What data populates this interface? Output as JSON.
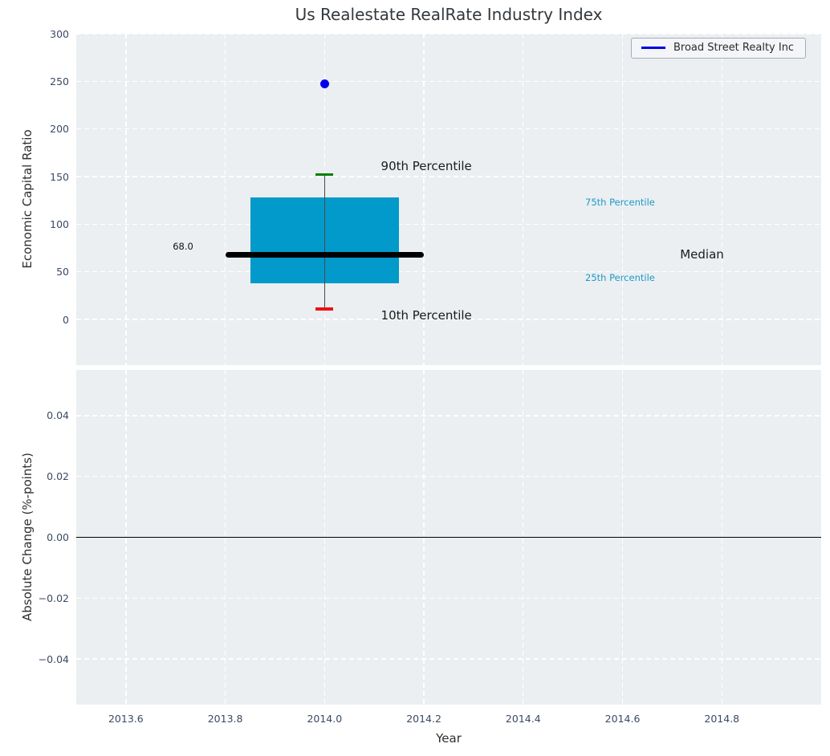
{
  "title": "Us Realestate RealRate Industry Index",
  "legend": {
    "label": "Broad Street Realty Inc",
    "line_color": "#0000e0"
  },
  "colors": {
    "panel_bg": "#ebeff1",
    "grid": "#ffffff",
    "tick_label": "#3b4a63",
    "title": "#33383d",
    "box_fill": "#019acb",
    "median": "#000000",
    "p90_cap": "#007f00",
    "p10_cap": "#ee1111",
    "point": "#0000ee",
    "whisker": "#4a4a4a",
    "cyan_label": "#1f99c7",
    "zero_line": "#000000",
    "legend_border": "#a6adb5",
    "legend_bg": "#f4f5f9"
  },
  "chart_data": [
    {
      "type": "boxplot",
      "title": "Us Realestate RealRate Industry Index",
      "ylabel": "Economic Capital Ratio",
      "xlim": [
        2013.5,
        2015.0
      ],
      "ylim": [
        -48,
        300
      ],
      "yticks": [
        0,
        50,
        100,
        150,
        200,
        250,
        300
      ],
      "ytick_labels": [
        "0",
        "50",
        "100",
        "150",
        "200",
        "250",
        "300"
      ],
      "xticks": [
        2013.6,
        2013.8,
        2014.0,
        2014.2,
        2014.4,
        2014.6,
        2014.8
      ],
      "grid": true,
      "legend_position": "upper right",
      "box": {
        "x": 2014.0,
        "box_left": 2013.85,
        "box_right": 2014.15,
        "q1": 38,
        "q3": 128,
        "median": 68,
        "median_label": "68.0",
        "median_line_left": 2013.8,
        "median_line_right": 2014.2,
        "p10": 11,
        "p90": 152
      },
      "point": {
        "name": "Broad Street Realty Inc",
        "x": 2014.0,
        "y": 247
      },
      "annotations": [
        {
          "text": "68.0",
          "x": 2013.715,
          "y": 77,
          "style": "black-sm"
        },
        {
          "text": "90th Percentile",
          "x": 2014.205,
          "y": 161,
          "style": "black-lg"
        },
        {
          "text": "10th Percentile",
          "x": 2014.205,
          "y": 4,
          "style": "black-lg"
        },
        {
          "text": "75th Percentile",
          "x": 2014.595,
          "y": 123,
          "style": "cyan-sm"
        },
        {
          "text": "25th Percentile",
          "x": 2014.595,
          "y": 44,
          "style": "cyan-sm"
        },
        {
          "text": "Median",
          "x": 2014.76,
          "y": 68,
          "style": "black-lg"
        }
      ]
    },
    {
      "type": "line",
      "ylabel": "Absolute Change (%-points)",
      "xlabel": "Year",
      "xlim": [
        2013.5,
        2015.0
      ],
      "ylim": [
        -0.055,
        0.055
      ],
      "yticks": [
        0.04,
        0.02,
        0.0,
        -0.02,
        -0.04
      ],
      "ytick_labels": [
        "0.04",
        "0.02",
        "0.00",
        "−0.02",
        "−0.04"
      ],
      "xticks": [
        2013.6,
        2013.8,
        2014.0,
        2014.2,
        2014.4,
        2014.6,
        2014.8
      ],
      "xtick_labels": [
        "2013.6",
        "2013.8",
        "2014.0",
        "2014.2",
        "2014.4",
        "2014.6",
        "2014.8"
      ],
      "zero_line": 0.0,
      "grid": true,
      "series": []
    }
  ]
}
